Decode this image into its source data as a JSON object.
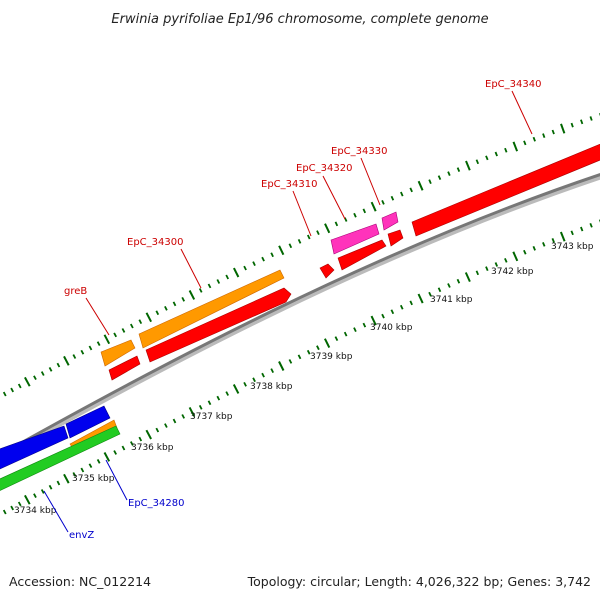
{
  "title": "Erwinia pyrifoliae Ep1/96 chromosome, complete genome",
  "footer": {
    "accession": "Accession: NC_012214",
    "summary": "Topology: circular; Length: 4,026,322 bp; Genes: 3,742"
  },
  "scale": {
    "ticks": [
      "3734 kbp",
      "3735 kbp",
      "3736 kbp",
      "3737 kbp",
      "3738 kbp",
      "3739 kbp",
      "3740 kbp",
      "3741 kbp",
      "3742 kbp",
      "3743 kbp"
    ]
  },
  "gene_labels": [
    {
      "id": "greB",
      "text": "greB",
      "color": "#cc0000"
    },
    {
      "id": "EpC_34300",
      "text": "EpC_34300",
      "color": "#cc0000"
    },
    {
      "id": "EpC_34310",
      "text": "EpC_34310",
      "color": "#cc0000"
    },
    {
      "id": "EpC_34320",
      "text": "EpC_34320",
      "color": "#cc0000"
    },
    {
      "id": "EpC_34330",
      "text": "EpC_34330",
      "color": "#cc0000"
    },
    {
      "id": "EpC_34340",
      "text": "EpC_34340",
      "color": "#cc0000"
    },
    {
      "id": "EpC_34280",
      "text": "EpC_34280",
      "color": "#0000cc"
    },
    {
      "id": "envZ",
      "text": "envZ",
      "color": "#0000cc"
    }
  ],
  "colors": {
    "cds": "#ff0000",
    "gene": "#ff9900",
    "misc": "#ff33bb",
    "blue": "#0000ee",
    "green": "#22cc22",
    "backbone": "#888888",
    "tick": "#006600"
  }
}
